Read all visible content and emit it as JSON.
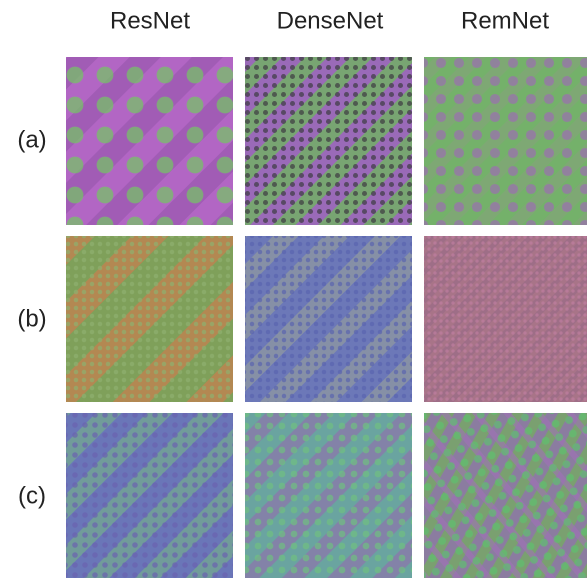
{
  "columns": [
    "ResNet",
    "DenseNet",
    "RemNet"
  ],
  "rows": [
    "(a)",
    "(b)",
    "(c)"
  ]
}
